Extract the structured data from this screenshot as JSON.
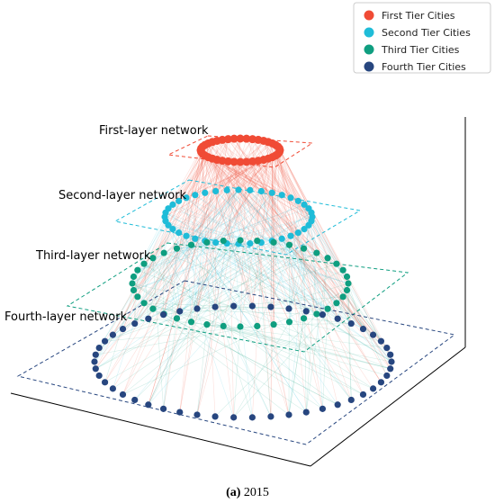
{
  "legend": [
    {
      "label": "First Tier Cities",
      "color": "#f04b35"
    },
    {
      "label": "Second Tier Cities",
      "color": "#1fbcd8"
    },
    {
      "label": "Third Tier Cities",
      "color": "#0f9e80"
    },
    {
      "label": "Fourth Tier Cities",
      "color": "#27467f"
    }
  ],
  "layers": [
    {
      "label": "First-layer network"
    },
    {
      "label": "Second-layer network"
    },
    {
      "label": "Third-layer network"
    },
    {
      "label": "Fourth-layer network"
    }
  ],
  "caption": {
    "label": "(a)",
    "text": "2015"
  }
}
